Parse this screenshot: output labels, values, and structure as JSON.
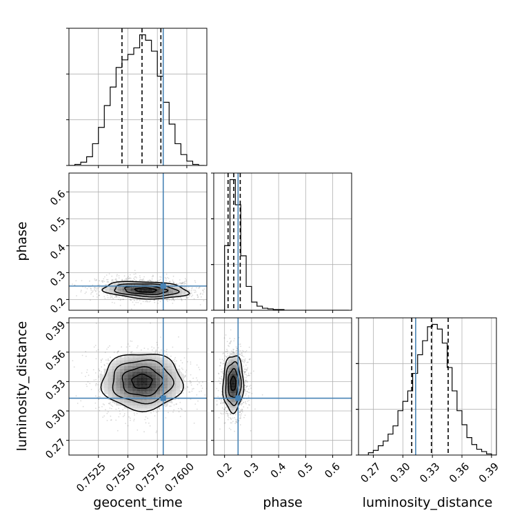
{
  "colors": {
    "truth": "#4682b4",
    "hist": "#000000",
    "quantile": "#000000",
    "grid": "#b0b0b0",
    "points": "#555555"
  },
  "chart_data": {
    "type": "corner",
    "parameters": [
      "geocent_time",
      "phase",
      "luminosity_distance"
    ],
    "truths": {
      "geocent_time": 0.758,
      "phase": 0.25,
      "luminosity_distance": 0.313
    },
    "quantiles": {
      "geocent_time": [
        0.7545,
        0.7562,
        0.7578
      ],
      "phase": [
        0.213,
        0.234,
        0.258
      ],
      "luminosity_distance": [
        0.309,
        0.329,
        0.346
      ]
    },
    "ranges": {
      "geocent_time": [
        0.75,
        0.7617
      ],
      "phase": [
        0.16,
        0.67
      ],
      "luminosity_distance": [
        0.255,
        0.395
      ]
    },
    "ticks": {
      "geocent_time": {
        "values": [
          0.7525,
          0.755,
          0.7575,
          0.76
        ],
        "labels": [
          "0.7525",
          "0.7550",
          "0.7575",
          "0.7600"
        ]
      },
      "phase": {
        "values": [
          0.2,
          0.3,
          0.4,
          0.5,
          0.6
        ],
        "labels": [
          "0.2",
          "0.3",
          "0.4",
          "0.5",
          "0.6"
        ]
      },
      "luminosity_distance": {
        "values": [
          0.27,
          0.3,
          0.33,
          0.36,
          0.39
        ],
        "labels": [
          "0.27",
          "0.30",
          "0.33",
          "0.36",
          "0.39"
        ]
      }
    },
    "histograms": {
      "geocent_time": {
        "bin_edges": [
          0.75,
          0.7505,
          0.751,
          0.7515,
          0.752,
          0.7525,
          0.753,
          0.7535,
          0.754,
          0.7545,
          0.755,
          0.7555,
          0.756,
          0.7565,
          0.757,
          0.7575,
          0.758,
          0.7585,
          0.759,
          0.7595,
          0.76,
          0.7605,
          0.761,
          0.7615
        ],
        "counts": [
          0,
          1,
          3,
          8,
          20,
          35,
          55,
          72,
          90,
          97,
          102,
          108,
          120,
          115,
          105,
          82,
          58,
          38,
          20,
          10,
          4,
          1,
          0
        ]
      },
      "phase": {
        "bin_edges": [
          0.16,
          0.18,
          0.2,
          0.22,
          0.24,
          0.26,
          0.28,
          0.3,
          0.32,
          0.34,
          0.36,
          0.38,
          0.4,
          0.42,
          0.44,
          0.46,
          0.48,
          0.5,
          0.52,
          0.54,
          0.56,
          0.58,
          0.6,
          0.62,
          0.64,
          0.66
        ],
        "counts": [
          0,
          0,
          95,
          192,
          155,
          80,
          35,
          12,
          6,
          3,
          2,
          1,
          1,
          0,
          0,
          0,
          0,
          0,
          0,
          0,
          0,
          0,
          0,
          0,
          0
        ]
      },
      "luminosity_distance": {
        "bin_edges": [
          0.255,
          0.26,
          0.265,
          0.27,
          0.275,
          0.28,
          0.285,
          0.29,
          0.295,
          0.3,
          0.305,
          0.31,
          0.315,
          0.32,
          0.325,
          0.33,
          0.335,
          0.34,
          0.345,
          0.35,
          0.355,
          0.36,
          0.365,
          0.37,
          0.375,
          0.38,
          0.385,
          0.39,
          0.395
        ],
        "counts": [
          0,
          0,
          2,
          4,
          8,
          12,
          18,
          25,
          38,
          46,
          55,
          70,
          86,
          98,
          110,
          112,
          108,
          96,
          75,
          55,
          38,
          26,
          15,
          9,
          5,
          3,
          1,
          0
        ]
      }
    },
    "gaussian_2d": {
      "phase|geocent_time": {
        "mean_x": 0.7565,
        "mean_y": 0.235,
        "sd_x": 0.0018,
        "sd_y": 0.016,
        "rho": -0.2,
        "tail_scale_y": 0.035
      },
      "luminosity_distance|geocent_time": {
        "mean_x": 0.7562,
        "mean_y": 0.33,
        "sd_x": 0.0017,
        "sd_y": 0.0145,
        "rho": 0.0
      },
      "luminosity_distance|phase": {
        "mean_x": 0.232,
        "mean_y": 0.328,
        "sd_x": 0.019,
        "sd_y": 0.0145,
        "rho": 0.05,
        "tail_scale_x": 0.04
      }
    },
    "contour_levels_sigma": [
      0.5,
      1.0,
      1.5,
      2.0
    ],
    "labels": {
      "x_bottom": [
        "geocent_time",
        "phase",
        "luminosity_distance"
      ],
      "y_left": [
        "phase",
        "luminosity_distance"
      ]
    },
    "grid": true
  }
}
